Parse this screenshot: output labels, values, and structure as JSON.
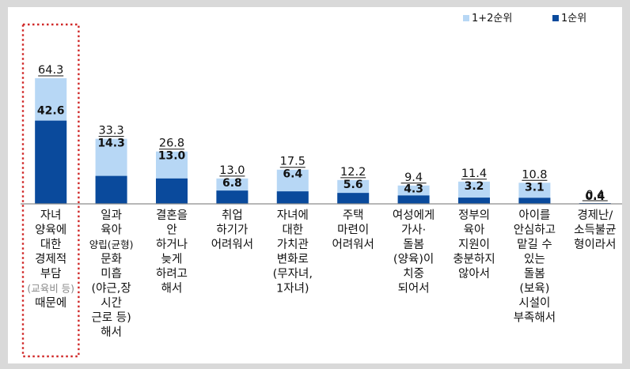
{
  "chart_data": {
    "type": "bar",
    "title": "",
    "xlabel": "",
    "ylabel": "",
    "ylim": [
      0,
      70
    ],
    "legend_position": "top-right",
    "legend": [
      "1+2순위",
      "1순위"
    ],
    "colors": {
      "total": "#b7d7f5",
      "first": "#0a4a9c",
      "highlight": "#d02828",
      "axis": "#8c8c8c"
    },
    "categories": [
      {
        "lines": [
          "자녀",
          "양육에",
          "대한",
          "경제적",
          "부담",
          "(교육비 등)",
          "때문에"
        ]
      },
      {
        "lines": [
          "일과",
          "육아",
          "양립(균형)",
          "문화",
          "미흡",
          "(야근,장",
          "시간",
          "근로 등)",
          "해서"
        ]
      },
      {
        "lines": [
          "결혼을",
          "안",
          "하거나",
          "늦게",
          "하려고",
          "해서"
        ]
      },
      {
        "lines": [
          "취업",
          "하기가",
          "어려워서"
        ]
      },
      {
        "lines": [
          "자녀에",
          "대한",
          "가치관",
          "변화로",
          "(무자녀,",
          "1자녀)"
        ]
      },
      {
        "lines": [
          "주택",
          "마련이",
          "어려워서"
        ]
      },
      {
        "lines": [
          "여성에게",
          "가사·",
          "돌봄",
          "(양육)이",
          "치중",
          "되어서"
        ]
      },
      {
        "lines": [
          "정부의",
          "육아",
          "지원이",
          "충분하지",
          "않아서"
        ]
      },
      {
        "lines": [
          "아이를",
          "안심하고",
          "맡길 수",
          "있는",
          "돌봄",
          "(보육)",
          "시설이",
          "부족해서"
        ]
      },
      {
        "lines": [
          "경제난/",
          "소득불균",
          "형이라서"
        ]
      }
    ],
    "series": [
      {
        "name": "1+2순위",
        "values": [
          64.3,
          33.3,
          26.8,
          13.0,
          17.5,
          12.2,
          9.4,
          11.4,
          10.8,
          0.4
        ]
      },
      {
        "name": "1순위",
        "values": [
          42.6,
          14.3,
          13.0,
          6.8,
          6.4,
          5.6,
          4.3,
          3.2,
          3.1,
          0.4
        ]
      }
    ],
    "value_labels_total": [
      "64.3",
      "33.3",
      "26.8",
      "13.0",
      "17.5",
      "12.2",
      "9.4",
      "11.4",
      "10.8",
      "0.4"
    ],
    "value_labels_first": [
      "42.6",
      "14.3",
      "13.0",
      "6.8",
      "6.4",
      "5.6",
      "4.3",
      "3.2",
      "3.1",
      "0.4"
    ],
    "highlighted_index": 0
  }
}
